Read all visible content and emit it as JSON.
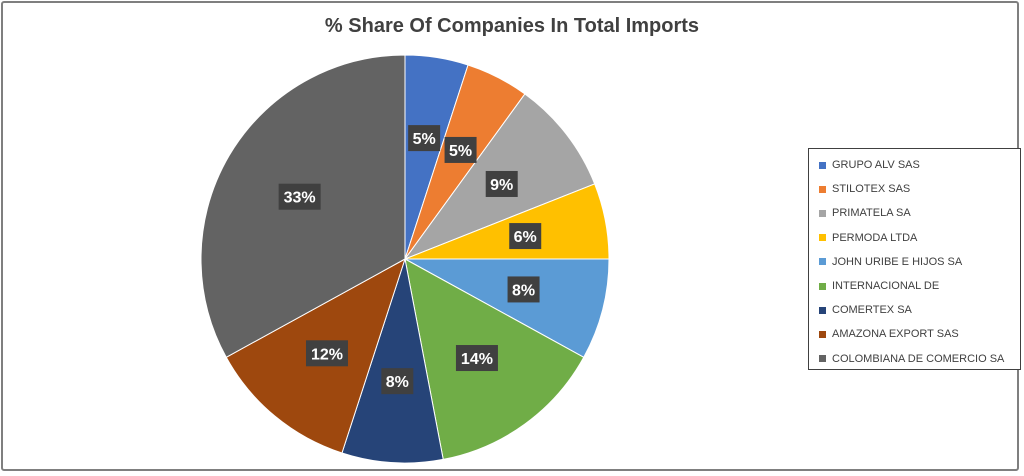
{
  "chart_data": {
    "type": "pie",
    "title": "% Share Of Companies In Total Imports",
    "legend_position": "right",
    "slices": [
      {
        "label": "GRUPO ALV SAS",
        "value": 5,
        "display": "5%",
        "color": "#4472c4"
      },
      {
        "label": "STILOTEX SAS",
        "value": 5,
        "display": "5%",
        "color": "#ed7d31"
      },
      {
        "label": "PRIMATELA SA",
        "value": 9,
        "display": "9%",
        "color": "#a5a5a5"
      },
      {
        "label": "PERMODA LTDA",
        "value": 6,
        "display": "6%",
        "color": "#ffc000"
      },
      {
        "label": "JOHN URIBE E HIJOS SA",
        "value": 8,
        "display": "8%",
        "color": "#5b9bd5"
      },
      {
        "label": "INTERNACIONAL DE",
        "value": 14,
        "display": "14%",
        "color": "#70ad47"
      },
      {
        "label": "COMERTEX SA",
        "value": 8,
        "display": "8%",
        "color": "#264478"
      },
      {
        "label": "AMAZONA EXPORT SAS",
        "value": 12,
        "display": "12%",
        "color": "#9e480e"
      },
      {
        "label": "COLOMBIANA DE COMERCIO SA",
        "value": 33,
        "display": "33%",
        "color": "#636363"
      }
    ]
  }
}
